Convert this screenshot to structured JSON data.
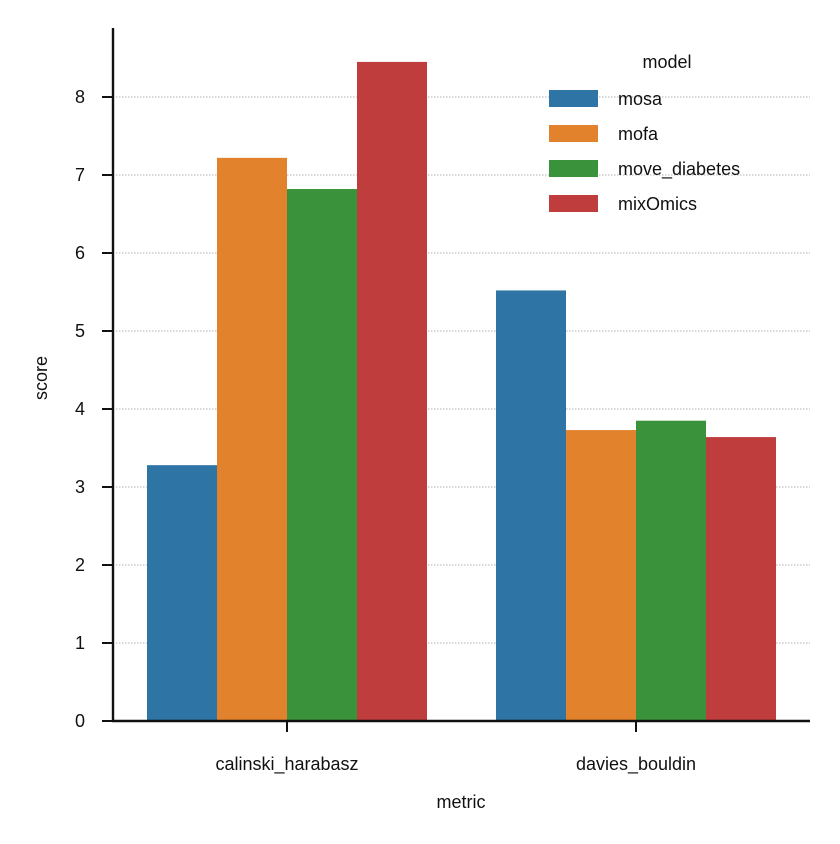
{
  "chart_data": {
    "type": "bar",
    "title": "",
    "xlabel": "metric",
    "ylabel": "score",
    "categories": [
      "calinski_harabasz",
      "davies_bouldin"
    ],
    "series": [
      {
        "name": "mosa",
        "values": [
          3.28,
          5.52
        ],
        "color": "#2e74a5"
      },
      {
        "name": "mofa",
        "values": [
          7.22,
          3.73
        ],
        "color": "#e2822c"
      },
      {
        "name": "move_diabetes",
        "values": [
          6.82,
          3.85
        ],
        "color": "#3a923a"
      },
      {
        "name": "mixOmics",
        "values": [
          8.45,
          3.64
        ],
        "color": "#c03d3e"
      }
    ],
    "ylim": [
      0,
      8.9
    ],
    "yticks": [
      0,
      1,
      2,
      3,
      4,
      5,
      6,
      7,
      8
    ],
    "grid": true,
    "legend": {
      "title": "model",
      "placement": "top-right"
    }
  }
}
